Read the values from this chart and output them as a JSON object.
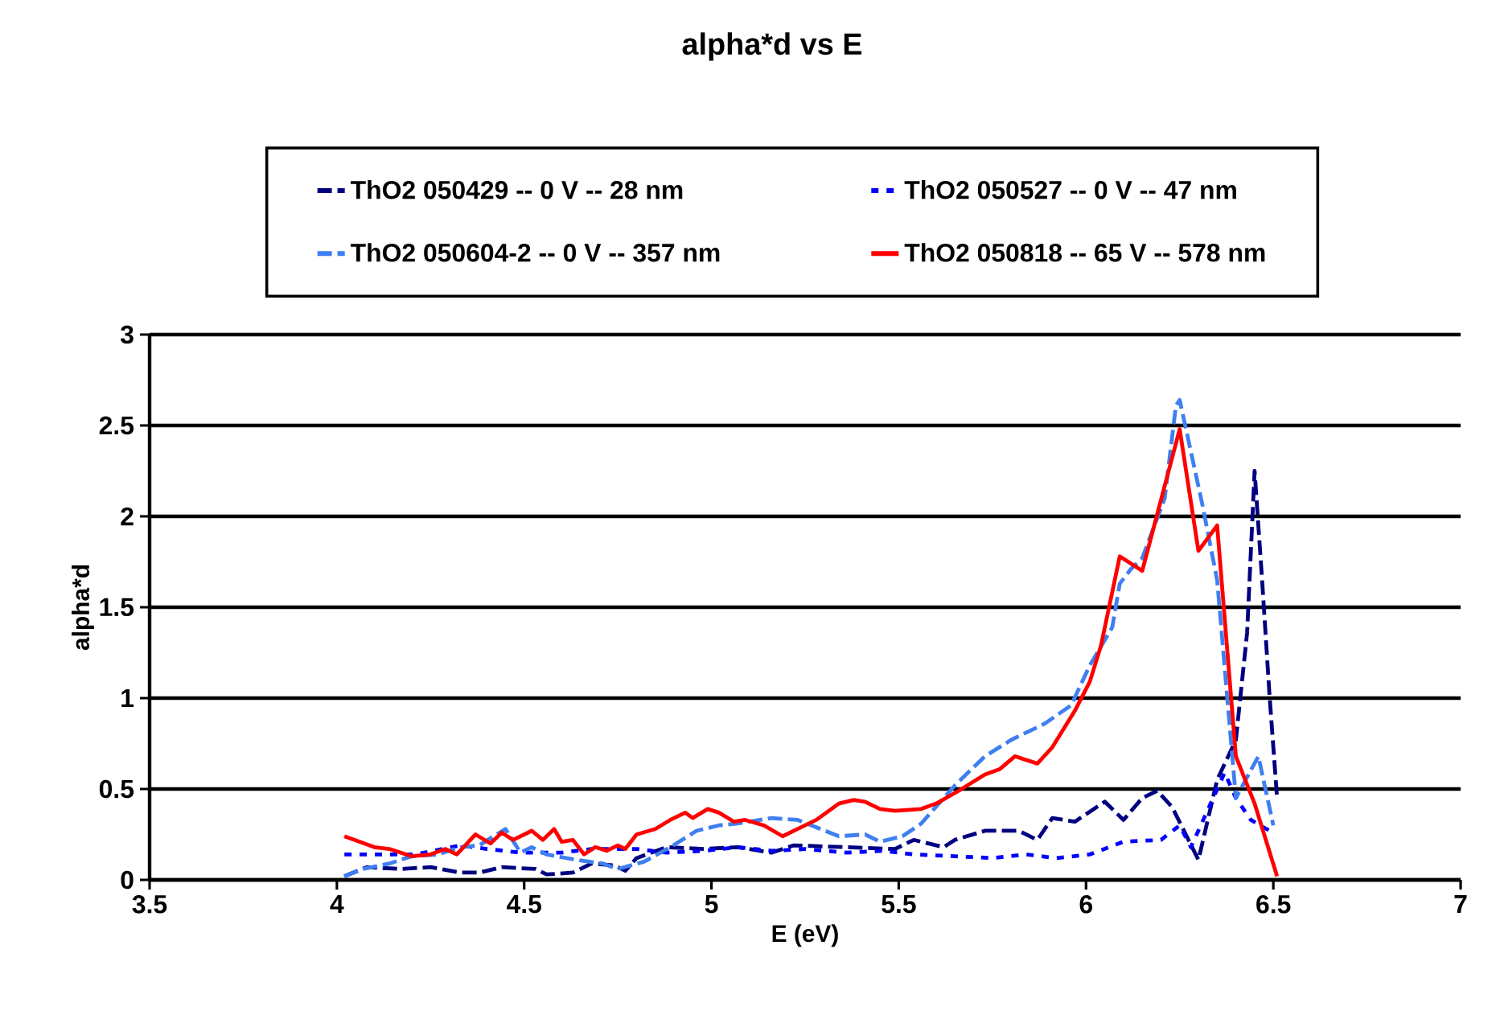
{
  "chart_data": {
    "type": "line",
    "title": "alpha*d vs E",
    "xlabel": "E (eV)",
    "ylabel": "alpha*d",
    "xlim": [
      3.5,
      7
    ],
    "xticks": [
      3.5,
      4,
      4.5,
      5,
      5.5,
      6,
      6.5,
      7
    ],
    "ylim": [
      0,
      3
    ],
    "yticks": [
      0,
      0.5,
      1,
      1.5,
      2,
      2.5,
      3
    ],
    "grid": "y",
    "legend": "top",
    "marker": "none",
    "series": [
      {
        "name": "ThO2 050429 -- 0 V -- 28 nm",
        "color": "#000080",
        "line_style": "dashed",
        "x": [
          4.02,
          4.08,
          4.17,
          4.25,
          4.33,
          4.38,
          4.44,
          4.53,
          4.56,
          4.63,
          4.68,
          4.74,
          4.77,
          4.8,
          4.88,
          4.98,
          5.07,
          5.16,
          5.22,
          5.49,
          5.54,
          5.62,
          5.65,
          5.73,
          5.82,
          5.87,
          5.91,
          5.97,
          6.05,
          6.1,
          6.15,
          6.19,
          6.23,
          6.3,
          6.35,
          6.4,
          6.43,
          6.45,
          6.47,
          6.49,
          6.51
        ],
        "values": [
          0.02,
          0.07,
          0.06,
          0.07,
          0.04,
          0.04,
          0.07,
          0.06,
          0.03,
          0.04,
          0.09,
          0.08,
          0.05,
          0.12,
          0.18,
          0.17,
          0.18,
          0.15,
          0.19,
          0.17,
          0.22,
          0.18,
          0.22,
          0.27,
          0.27,
          0.22,
          0.34,
          0.32,
          0.43,
          0.33,
          0.45,
          0.49,
          0.4,
          0.11,
          0.55,
          0.77,
          1.36,
          2.25,
          1.65,
          1.01,
          0.45
        ]
      },
      {
        "name": "ThO2 050527 -- 0 V -- 47 nm",
        "color": "#0000ff",
        "line_style": "dotted",
        "x": [
          4.02,
          4.11,
          4.21,
          4.33,
          4.4,
          4.49,
          4.6,
          4.68,
          4.8,
          4.88,
          4.98,
          5.07,
          5.16,
          5.25,
          5.36,
          5.46,
          5.54,
          5.65,
          5.75,
          5.84,
          5.92,
          6.01,
          6.1,
          6.2,
          6.25,
          6.28,
          6.37,
          6.4,
          6.44,
          6.49
        ],
        "values": [
          0.14,
          0.14,
          0.14,
          0.19,
          0.17,
          0.15,
          0.15,
          0.17,
          0.17,
          0.15,
          0.16,
          0.18,
          0.16,
          0.17,
          0.15,
          0.16,
          0.14,
          0.13,
          0.12,
          0.14,
          0.12,
          0.14,
          0.21,
          0.22,
          0.3,
          0.18,
          0.59,
          0.45,
          0.33,
          0.27
        ]
      },
      {
        "name": "ThO2 050604-2 -- 0 V -- 357 nm",
        "color": "#3f7ff0",
        "line_style": "dashed",
        "x": [
          4.02,
          4.07,
          4.14,
          4.2,
          4.27,
          4.33,
          4.38,
          4.45,
          4.49,
          4.52,
          4.56,
          4.64,
          4.71,
          4.75,
          4.82,
          4.89,
          4.96,
          5.02,
          5.07,
          5.16,
          5.23,
          5.34,
          5.41,
          5.45,
          5.51,
          5.56,
          5.65,
          5.73,
          5.8,
          5.89,
          5.96,
          6.01,
          6.07,
          6.09,
          6.12,
          6.15,
          6.21,
          6.24,
          6.25,
          6.31,
          6.35,
          6.4,
          6.46,
          6.5
        ],
        "values": [
          0.02,
          0.06,
          0.09,
          0.13,
          0.14,
          0.18,
          0.19,
          0.28,
          0.15,
          0.18,
          0.14,
          0.11,
          0.09,
          0.06,
          0.1,
          0.18,
          0.27,
          0.3,
          0.31,
          0.34,
          0.33,
          0.24,
          0.25,
          0.21,
          0.24,
          0.31,
          0.52,
          0.68,
          0.77,
          0.86,
          0.96,
          1.18,
          1.39,
          1.63,
          1.71,
          1.77,
          2.1,
          2.61,
          2.64,
          2.07,
          1.65,
          0.45,
          0.68,
          0.3
        ]
      },
      {
        "name": "ThO2 050818 -- 65 V -- 578 nm",
        "color": "#ff0000",
        "line_style": "solid",
        "x": [
          4.02,
          4.06,
          4.1,
          4.14,
          4.2,
          4.25,
          4.29,
          4.32,
          4.37,
          4.41,
          4.44,
          4.47,
          4.52,
          4.55,
          4.58,
          4.6,
          4.63,
          4.66,
          4.69,
          4.72,
          4.75,
          4.77,
          4.8,
          4.85,
          4.89,
          4.93,
          4.95,
          4.99,
          5.02,
          5.06,
          5.09,
          5.14,
          5.19,
          5.23,
          5.28,
          5.34,
          5.38,
          5.41,
          5.45,
          5.49,
          5.56,
          5.6,
          5.66,
          5.73,
          5.77,
          5.81,
          5.87,
          5.91,
          5.97,
          6.01,
          6.04,
          6.09,
          6.15,
          6.25,
          6.3,
          6.35,
          6.4,
          6.45,
          6.51
        ],
        "values": [
          0.24,
          0.21,
          0.18,
          0.17,
          0.13,
          0.14,
          0.17,
          0.14,
          0.25,
          0.2,
          0.26,
          0.22,
          0.27,
          0.22,
          0.28,
          0.21,
          0.22,
          0.14,
          0.18,
          0.16,
          0.19,
          0.17,
          0.25,
          0.28,
          0.33,
          0.37,
          0.34,
          0.39,
          0.37,
          0.32,
          0.33,
          0.3,
          0.24,
          0.28,
          0.33,
          0.42,
          0.44,
          0.43,
          0.39,
          0.38,
          0.39,
          0.42,
          0.49,
          0.58,
          0.61,
          0.68,
          0.64,
          0.73,
          0.93,
          1.09,
          1.29,
          1.78,
          1.7,
          2.48,
          1.81,
          1.95,
          0.68,
          0.42,
          0.02
        ]
      }
    ]
  }
}
